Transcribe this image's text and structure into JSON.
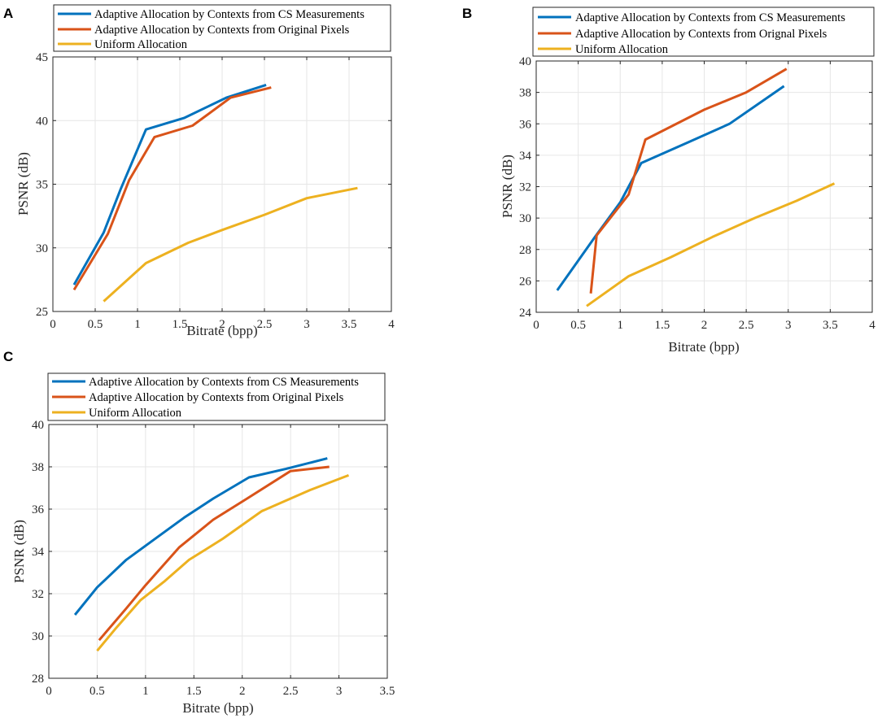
{
  "chart_data": [
    {
      "panel": "A",
      "type": "line",
      "xlabel": "Bitrate (bpp)",
      "ylabel": "PSNR (dB)",
      "xlim": [
        0,
        4
      ],
      "ylim": [
        25,
        45
      ],
      "xticks": [
        0,
        0.5,
        1,
        1.5,
        2,
        2.5,
        3,
        3.5,
        4
      ],
      "yticks": [
        25,
        30,
        35,
        40,
        45
      ],
      "xtick_labels": [
        "0",
        "0.5",
        "1",
        "1.5",
        "2",
        "2.5",
        "3",
        "3.5",
        "4"
      ],
      "ytick_labels": [
        "25",
        "30",
        "35",
        "40",
        "45"
      ],
      "grid": true,
      "legend_position": "top",
      "series": [
        {
          "name": "Adaptive Allocation by Contexts from CS Measurements",
          "color": "#0072BD",
          "x": [
            0.25,
            0.6,
            0.8,
            1.1,
            1.55,
            2.05,
            2.52
          ],
          "y": [
            27.1,
            31.2,
            34.6,
            39.3,
            40.2,
            41.8,
            42.8
          ]
        },
        {
          "name": "Adaptive Allocation by Contexts from Original Pixels",
          "color": "#D95319",
          "x": [
            0.25,
            0.65,
            0.9,
            1.2,
            1.65,
            2.1,
            2.58
          ],
          "y": [
            26.7,
            31.1,
            35.3,
            38.7,
            39.6,
            41.8,
            42.6
          ]
        },
        {
          "name": "Uniform Allocation",
          "color": "#EDB120",
          "x": [
            0.6,
            1.1,
            1.6,
            2.0,
            2.5,
            3.0,
            3.6
          ],
          "y": [
            25.8,
            28.8,
            30.4,
            31.4,
            32.6,
            33.9,
            34.7
          ]
        }
      ]
    },
    {
      "panel": "B",
      "type": "line",
      "xlabel": "Bitrate (bpp)",
      "ylabel": "PSNR (dB)",
      "xlim": [
        0,
        4
      ],
      "ylim": [
        24,
        40
      ],
      "xticks": [
        0,
        0.5,
        1,
        1.5,
        2,
        2.5,
        3,
        3.5,
        4
      ],
      "yticks": [
        24,
        26,
        28,
        30,
        32,
        34,
        36,
        38,
        40
      ],
      "xtick_labels": [
        "0",
        "0.5",
        "1",
        "1.5",
        "2",
        "2.5",
        "3",
        "3.5",
        "4"
      ],
      "ytick_labels": [
        "24",
        "26",
        "28",
        "30",
        "32",
        "34",
        "36",
        "38",
        "40"
      ],
      "grid": true,
      "legend_position": "top",
      "series": [
        {
          "name": "Adaptive Allocation by Contexts from CS Measurements",
          "color": "#0072BD",
          "x": [
            0.25,
            0.7,
            1.0,
            1.25,
            1.8,
            2.3,
            2.95
          ],
          "y": [
            25.4,
            28.8,
            31.0,
            33.5,
            34.8,
            36.0,
            38.4
          ]
        },
        {
          "name": "Adaptive Allocation  by Contexts from Orignal  Pixels",
          "color": "#D95319",
          "x": [
            0.65,
            0.72,
            1.1,
            1.3,
            2.0,
            2.5,
            2.98
          ],
          "y": [
            25.2,
            28.9,
            31.5,
            35.0,
            36.9,
            38.0,
            39.5
          ]
        },
        {
          "name": "Uniform Allocation",
          "color": "#EDB120",
          "x": [
            0.6,
            1.1,
            1.6,
            2.1,
            2.6,
            3.1,
            3.55
          ],
          "y": [
            24.4,
            26.3,
            27.5,
            28.8,
            30.0,
            31.1,
            32.2
          ]
        }
      ]
    },
    {
      "panel": "C",
      "type": "line",
      "xlabel": "Bitrate (bpp)",
      "ylabel": "PSNR (dB)",
      "xlim": [
        0,
        3.5
      ],
      "ylim": [
        28,
        40
      ],
      "xticks": [
        0,
        0.5,
        1,
        1.5,
        2,
        2.5,
        3,
        3.5
      ],
      "yticks": [
        28,
        30,
        32,
        34,
        36,
        38,
        40
      ],
      "xtick_labels": [
        "0",
        "0.5",
        "1",
        "1.5",
        "2",
        "2.5",
        "3",
        "3.5"
      ],
      "ytick_labels": [
        "28",
        "30",
        "32",
        "34",
        "36",
        "38",
        "40"
      ],
      "grid": true,
      "legend_position": "top",
      "series": [
        {
          "name": "Adaptive Allocation by Contexts from CS Measurements",
          "color": "#0072BD",
          "x": [
            0.27,
            0.5,
            0.8,
            1.1,
            1.4,
            1.7,
            2.07,
            2.45,
            2.88
          ],
          "y": [
            31.0,
            32.3,
            33.6,
            34.6,
            35.6,
            36.5,
            37.5,
            37.9,
            38.4
          ]
        },
        {
          "name": "Adaptive Allocation by Contexts from Original Pixels",
          "color": "#D95319",
          "x": [
            0.52,
            0.8,
            1.0,
            1.35,
            1.7,
            2.05,
            2.5,
            2.9
          ],
          "y": [
            29.8,
            31.3,
            32.4,
            34.2,
            35.5,
            36.5,
            37.8,
            38.0
          ]
        },
        {
          "name": "Uniform Allocation",
          "color": "#EDB120",
          "x": [
            0.5,
            0.7,
            0.95,
            1.2,
            1.45,
            1.8,
            2.2,
            2.7,
            3.1
          ],
          "y": [
            29.3,
            30.4,
            31.7,
            32.6,
            33.6,
            34.6,
            35.9,
            36.9,
            37.6
          ]
        }
      ]
    }
  ]
}
